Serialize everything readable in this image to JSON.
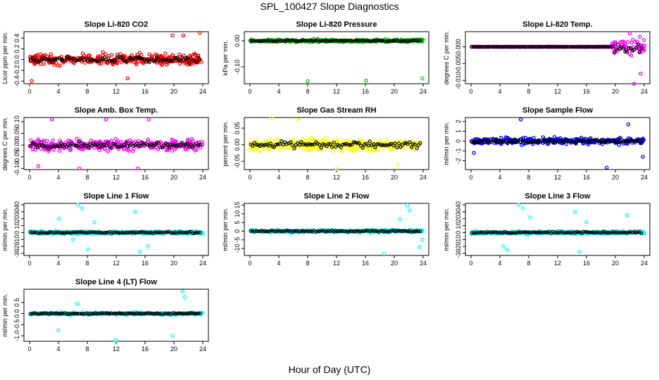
{
  "figure": {
    "title": "SPL_100427  Slope Diagnostics",
    "xlabel": "Hour of Day (UTC)"
  },
  "colors": {
    "co2": "#ff0000",
    "pressure": "#00cc00",
    "temp": "#ff00ff",
    "box_temp": "#ff00ff",
    "rh": "#ffff00",
    "sample_flow": "#0000ff",
    "line_flow": "#00ffff",
    "overlay": "#000000"
  },
  "chart_data": [
    {
      "type": "scatter",
      "title": "Slope Li-820 CO2",
      "ylabel": "Licor ppm per min.",
      "color": "co2",
      "xlim": [
        0,
        24
      ],
      "xticks": [
        0,
        4,
        8,
        12,
        16,
        20,
        24
      ],
      "ylim": [
        -0.45,
        0.52
      ],
      "yticks": [
        -0.4,
        -0.2,
        0.0,
        0.2,
        0.4
      ],
      "yticklabels": [
        "-0.4",
        "-0.2",
        "0.0",
        "0.2",
        "0.4"
      ],
      "spread": 0.15,
      "outliers": [
        [
          19.8,
          0.45
        ],
        [
          21.3,
          0.45
        ],
        [
          23.6,
          0.5
        ],
        [
          0.3,
          -0.4
        ],
        [
          13.6,
          -0.35
        ]
      ],
      "spike": null
    },
    {
      "type": "scatter",
      "title": "Slope Li-820 Pressure",
      "ylabel": "kPa per min.",
      "color": "pressure",
      "xlim": [
        0,
        24
      ],
      "xticks": [
        0,
        4,
        8,
        12,
        16,
        20,
        24
      ],
      "ylim": [
        -0.165,
        0.035
      ],
      "yticks": [
        -0.1,
        0.0
      ],
      "yticklabels": [
        "-0.10",
        "0.00"
      ],
      "spread": 0.008,
      "outliers": [
        [
          8.0,
          -0.155
        ],
        [
          16.1,
          -0.153
        ],
        [
          23.9,
          -0.145
        ]
      ],
      "spike": null
    },
    {
      "type": "scatter",
      "title": "Slope Li-820 Temp.",
      "ylabel": "degrees C per min.",
      "color": "temp",
      "xlim": [
        0,
        24
      ],
      "xticks": [
        0,
        4,
        8,
        12,
        16,
        20,
        24
      ],
      "ylim": [
        -0.011,
        0.0045
      ],
      "yticks": [
        -0.01,
        -0.005,
        0.0
      ],
      "yticklabels": [
        "-0.010",
        "-0.005",
        "0.000"
      ],
      "spread": 5e-05,
      "outliers": [
        [
          22.0,
          0.004
        ],
        [
          23.4,
          0.003
        ],
        [
          23.5,
          -0.008
        ],
        [
          22.6,
          -0.011
        ]
      ],
      "spike": {
        "from": 19.5,
        "to": 24,
        "amp": 0.0032
      }
    },
    {
      "type": "scatter",
      "title": "Slope Amb. Box Temp.",
      "ylabel": "degrees C per min.",
      "color": "box_temp",
      "xlim": [
        0,
        24
      ],
      "xticks": [
        0,
        4,
        8,
        12,
        16,
        20,
        24
      ],
      "ylim": [
        -0.105,
        0.118
      ],
      "yticks": [
        -0.1,
        -0.05,
        0.0,
        0.05,
        0.1
      ],
      "yticklabels": [
        "-0.10",
        "-0.05",
        "0.00",
        "0.05",
        "0.10"
      ],
      "spread": 0.035,
      "outliers": [
        [
          3.1,
          0.11
        ],
        [
          10.6,
          0.11
        ],
        [
          16.5,
          0.11
        ],
        [
          15.0,
          -0.1
        ],
        [
          6.9,
          -0.1
        ],
        [
          1.2,
          -0.09
        ]
      ],
      "spike": null
    },
    {
      "type": "scatter",
      "title": "Slope Gas Stream RH",
      "ylabel": "percent per min.",
      "color": "rh",
      "xlim": [
        0,
        24
      ],
      "xticks": [
        0,
        4,
        8,
        12,
        16,
        20,
        24
      ],
      "ylim": [
        -0.075,
        0.082
      ],
      "yticks": [
        -0.05,
        0.0,
        0.05
      ],
      "yticklabels": [
        "-0.05",
        "0.00",
        "0.05"
      ],
      "spread": 0.025,
      "outliers": [
        [
          3.0,
          0.08
        ],
        [
          12.0,
          -0.072
        ],
        [
          20.5,
          -0.06
        ],
        [
          6.7,
          0.075
        ]
      ],
      "spike": null
    },
    {
      "type": "scatter",
      "title": "Slope Sample Flow",
      "ylabel": "ml/min per min.",
      "color": "sample_flow",
      "xlim": [
        0,
        24
      ],
      "xticks": [
        0,
        4,
        8,
        12,
        16,
        20,
        24
      ],
      "ylim": [
        -2.9,
        2.4
      ],
      "yticks": [
        -2,
        -1,
        0,
        1,
        2
      ],
      "yticklabels": [
        "-2",
        "-1",
        "0",
        "1",
        "2"
      ],
      "spread": 0.5,
      "outliers": [
        [
          6.9,
          2.2
        ],
        [
          18.8,
          -2.7
        ],
        [
          23.8,
          -1.6
        ],
        [
          0.4,
          -1.2
        ],
        [
          21.8,
          1.7
        ]
      ],
      "spike": null
    },
    {
      "type": "scatter",
      "title": "Slope Line 1 Flow",
      "ylabel": "ml/min per min.",
      "color": "line_flow",
      "xlim": [
        0,
        24
      ],
      "xticks": [
        0,
        4,
        8,
        12,
        16,
        20,
        24
      ],
      "ylim": [
        -33,
        42
      ],
      "yticks": [
        -30,
        -20,
        -10,
        0,
        10,
        20,
        30,
        40
      ],
      "yticklabels": [
        "-30",
        "-20",
        "-10",
        "0",
        "10",
        "20",
        "30",
        "40"
      ],
      "spread": 3,
      "outliers": [
        [
          6.7,
          40
        ],
        [
          7.3,
          35
        ],
        [
          15.3,
          -28
        ],
        [
          14.6,
          30
        ],
        [
          4.1,
          20
        ],
        [
          8.1,
          -24
        ],
        [
          6.0,
          -10
        ],
        [
          16.4,
          -20
        ],
        [
          9.0,
          15
        ]
      ],
      "spike": null
    },
    {
      "type": "scatter",
      "title": "Slope Line 2 Flow",
      "ylabel": "ml/min per min.",
      "color": "line_flow",
      "xlim": [
        0,
        24
      ],
      "xticks": [
        0,
        4,
        8,
        12,
        16,
        20,
        24
      ],
      "ylim": [
        -14,
        16
      ],
      "yticks": [
        -10,
        -5,
        0,
        5,
        10,
        15
      ],
      "yticklabels": [
        "-10",
        "-5",
        "0",
        "5",
        "10",
        "15"
      ],
      "spread": 1.2,
      "outliers": [
        [
          18.6,
          -13
        ],
        [
          21.8,
          15
        ],
        [
          22.1,
          12
        ],
        [
          23.5,
          -9
        ],
        [
          23.9,
          -5
        ],
        [
          20.8,
          7
        ]
      ],
      "spike": null
    },
    {
      "type": "scatter",
      "title": "Slope Line 3 Flow",
      "ylabel": "ml/min per min.",
      "color": "line_flow",
      "xlim": [
        0,
        24
      ],
      "xticks": [
        0,
        4,
        8,
        12,
        16,
        20,
        24
      ],
      "ylim": [
        -33,
        42
      ],
      "yticks": [
        -30,
        -20,
        -10,
        0,
        10,
        20,
        30,
        40
      ],
      "yticklabels": [
        "-30",
        "-20",
        "-10",
        "0",
        "10",
        "20",
        "30",
        "40"
      ],
      "spread": 3,
      "outliers": [
        [
          6.6,
          40
        ],
        [
          7.2,
          35
        ],
        [
          15.0,
          -28
        ],
        [
          14.4,
          30
        ],
        [
          4.5,
          -20
        ],
        [
          5.0,
          -25
        ],
        [
          8.2,
          22
        ],
        [
          16.0,
          15
        ],
        [
          21.6,
          25
        ]
      ],
      "spike": null
    },
    {
      "type": "scatter",
      "title": "Slope Line 4 (LT) Flow",
      "ylabel": "ml/min per min.",
      "color": "line_flow",
      "xlim": [
        0,
        24
      ],
      "xticks": [
        0,
        4,
        8,
        12,
        16,
        20,
        24
      ],
      "ylim": [
        -1.25,
        1.1
      ],
      "yticks": [
        -1.0,
        -0.5,
        0.0,
        0.5
      ],
      "yticklabels": [
        "-1.0",
        "-0.5",
        "0.0",
        "0.5"
      ],
      "spread": 0.08,
      "outliers": [
        [
          4.0,
          -0.75
        ],
        [
          11.9,
          -1.2
        ],
        [
          19.8,
          -1.0
        ],
        [
          21.2,
          1.0
        ],
        [
          21.5,
          0.75
        ],
        [
          6.6,
          0.45
        ]
      ],
      "spike": null
    }
  ]
}
